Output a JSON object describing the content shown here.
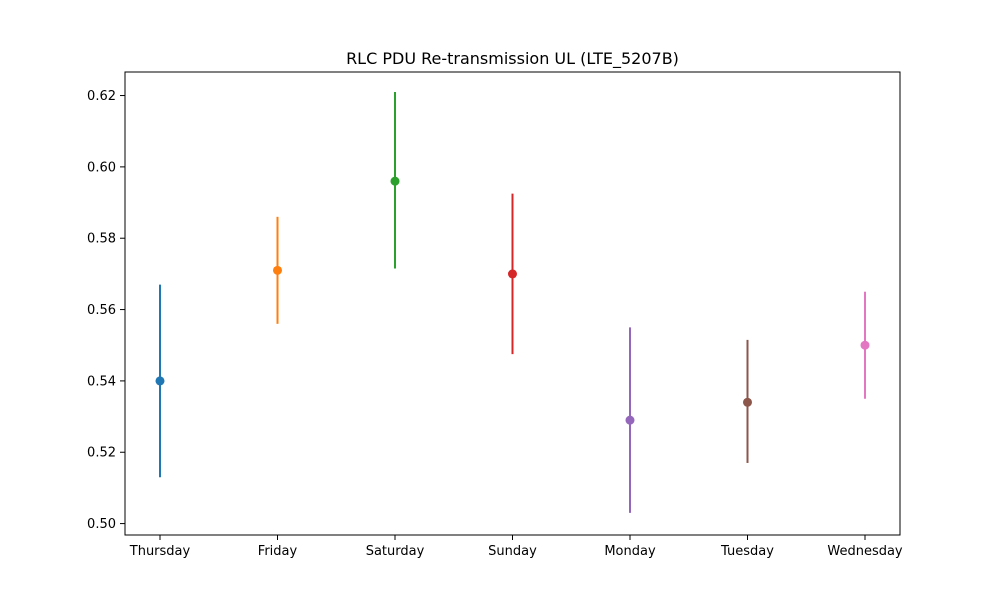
{
  "chart_data": {
    "type": "scatter",
    "title": "RLC PDU Re-transmission UL (LTE_5207B)",
    "xlabel": "",
    "ylabel": "",
    "categories": [
      "Thursday",
      "Friday",
      "Saturday",
      "Sunday",
      "Monday",
      "Tuesday",
      "Wednesday"
    ],
    "values": [
      0.54,
      0.571,
      0.596,
      0.57,
      0.529,
      0.534,
      0.55
    ],
    "error_low": [
      0.513,
      0.556,
      0.5715,
      0.5475,
      0.503,
      0.517,
      0.535
    ],
    "error_high": [
      0.567,
      0.586,
      0.621,
      0.5925,
      0.555,
      0.5515,
      0.565
    ],
    "colors": [
      "#1f77b4",
      "#ff7f0e",
      "#2ca02c",
      "#d62728",
      "#9467bd",
      "#8c564b",
      "#e377c2"
    ],
    "ylim": [
      0.4968,
      0.6266
    ],
    "yticks": [
      "0.50",
      "0.52",
      "0.54",
      "0.56",
      "0.58",
      "0.60",
      "0.62"
    ],
    "ytick_values": [
      0.5,
      0.52,
      0.54,
      0.56,
      0.58,
      0.6,
      0.62
    ],
    "grid": false
  }
}
